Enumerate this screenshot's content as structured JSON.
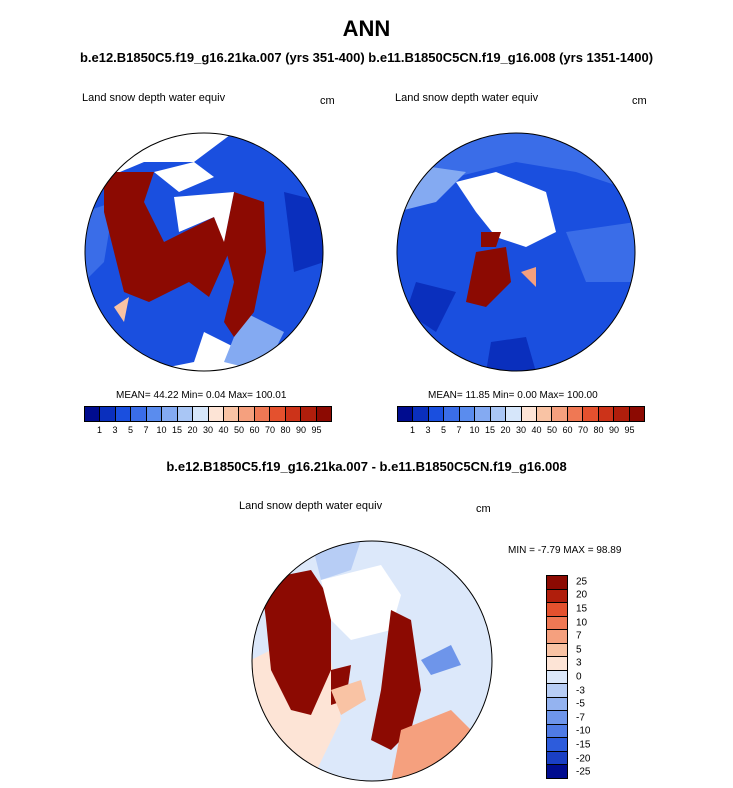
{
  "title": "ANN",
  "subtitle": "b.e12.B1850C5.f19_g16.21ka.007 (yrs 351-400) b.e11.B1850C5CN.f19_g16.008 (yrs 1351-1400)",
  "diff_title": "b.e12.B1850C5.f19_g16.21ka.007 - b.e11.B1850C5CN.f19_g16.008",
  "panels": [
    {
      "variable": "Land snow depth water equiv",
      "units": "cm",
      "stats": "MEAN=  44.22  Min=   0.04  Max= 100.01"
    },
    {
      "variable": "Land snow depth water equiv",
      "units": "cm",
      "stats": "MEAN=  11.85  Min=   0.00  Max= 100.00"
    }
  ],
  "diff_panel": {
    "variable": "Land snow depth water equiv",
    "units": "cm",
    "stats": "MIN =  -7.79 MAX =  98.89"
  },
  "colorbar": {
    "colors": [
      "#000c8f",
      "#0a2fbd",
      "#1a4fdf",
      "#3a6de8",
      "#5a8cee",
      "#84aaf2",
      "#a9c6f5",
      "#d6e6fa",
      "#fde4d6",
      "#f9c3a4",
      "#f5a07e",
      "#ef7854",
      "#e4512e",
      "#cc3319",
      "#b01e0c",
      "#8c0a02"
    ],
    "tick_labels": [
      "1",
      "3",
      "5",
      "7",
      "10",
      "15",
      "20",
      "30",
      "40",
      "50",
      "60",
      "70",
      "80",
      "90",
      "95"
    ]
  },
  "diff_colorbar": {
    "colors": [
      "#8c0a02",
      "#b01e0c",
      "#e4512e",
      "#ef7854",
      "#f5a07e",
      "#f9c3a4",
      "#fde4d6",
      "#dce8fa",
      "#b7cdf5",
      "#94b3f0",
      "#6e95ea",
      "#4f7be5",
      "#2d5cdc",
      "#1a3fc4",
      "#000c8f"
    ],
    "tick_labels": [
      "25",
      "20",
      "15",
      "10",
      "7",
      "5",
      "3",
      "0",
      "-3",
      "-5",
      "-7",
      "-10",
      "-15",
      "-20",
      "-25"
    ]
  }
}
